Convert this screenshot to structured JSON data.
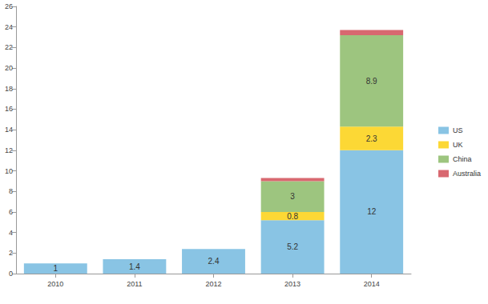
{
  "chart_data": {
    "type": "bar",
    "stacked": true,
    "grid": false,
    "legend": "right",
    "categories": [
      "2010",
      "2011",
      "2012",
      "2013",
      "2014"
    ],
    "series": [
      {
        "name": "US",
        "color": "#89c4e4",
        "data_labels": true,
        "values": [
          1,
          1.4,
          2.4,
          5.2,
          12
        ]
      },
      {
        "name": "UK",
        "color": "#fcd835",
        "data_labels": true,
        "values": [
          null,
          null,
          null,
          0.8,
          2.3
        ]
      },
      {
        "name": "China",
        "color": "#9dc57f",
        "data_labels": true,
        "values": [
          null,
          null,
          null,
          3,
          8.9
        ]
      },
      {
        "name": "Australia",
        "color": "#d86870",
        "data_labels": false,
        "values": [
          null,
          null,
          null,
          0.3,
          0.5
        ]
      }
    ],
    "ylim": [
      0,
      26
    ],
    "yticks": [
      0,
      2,
      4,
      6,
      8,
      10,
      12,
      14,
      16,
      18,
      20,
      22,
      24,
      26
    ]
  }
}
